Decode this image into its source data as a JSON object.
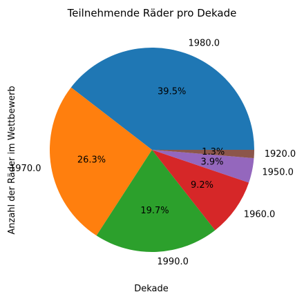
{
  "chart_data": {
    "type": "pie",
    "title": "Teilnehmende Räder pro Dekade",
    "xlabel": "Dekade",
    "ylabel": "Anzahl der Räder im Wettbewerb",
    "categories": [
      "1980.0",
      "1970.0",
      "1990.0",
      "1960.0",
      "1950.0",
      "1920.0"
    ],
    "values": [
      39.5,
      26.3,
      19.7,
      9.2,
      3.9,
      1.3
    ],
    "percent_labels": [
      "39.5%",
      "26.3%",
      "19.7%",
      "9.2%",
      "3.9%",
      "1.3%"
    ],
    "colors": [
      "#1f77b4",
      "#ff7f0e",
      "#2ca02c",
      "#d62728",
      "#9467bd",
      "#8c564b"
    ],
    "start_angle_deg": 0,
    "direction": "counterclockwise",
    "legend": "none"
  }
}
